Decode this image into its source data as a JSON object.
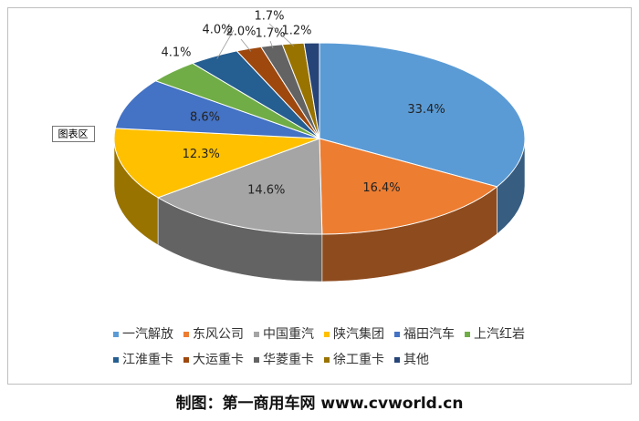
{
  "chart_data": {
    "type": "pie",
    "categories": [
      "一汽解放",
      "东风公司",
      "中国重汽",
      "陕汽集团",
      "福田汽车",
      "上汽红岩",
      "江淮重卡",
      "大运重卡",
      "华菱重卡",
      "徐工重卡",
      "其他"
    ],
    "values": [
      33.4,
      16.4,
      14.6,
      12.3,
      8.6,
      4.1,
      4.0,
      2.0,
      1.7,
      1.7,
      1.2
    ],
    "value_labels": [
      "33.4%",
      "16.4%",
      "14.6%",
      "12.3%",
      "8.6%",
      "4.1%",
      "4.0%",
      "2.0%",
      "1.7%",
      "1.7%",
      "1.2%"
    ],
    "colors": [
      "#5b9bd5",
      "#ed7d31",
      "#a5a5a5",
      "#ffc000",
      "#4472c4",
      "#70ad47",
      "#255e91",
      "#9e480e",
      "#636363",
      "#997300",
      "#264478"
    ],
    "legend": "bottom"
  },
  "tooltip": "图表区",
  "footer": "制图：第一商用车网 www.cvworld.cn"
}
